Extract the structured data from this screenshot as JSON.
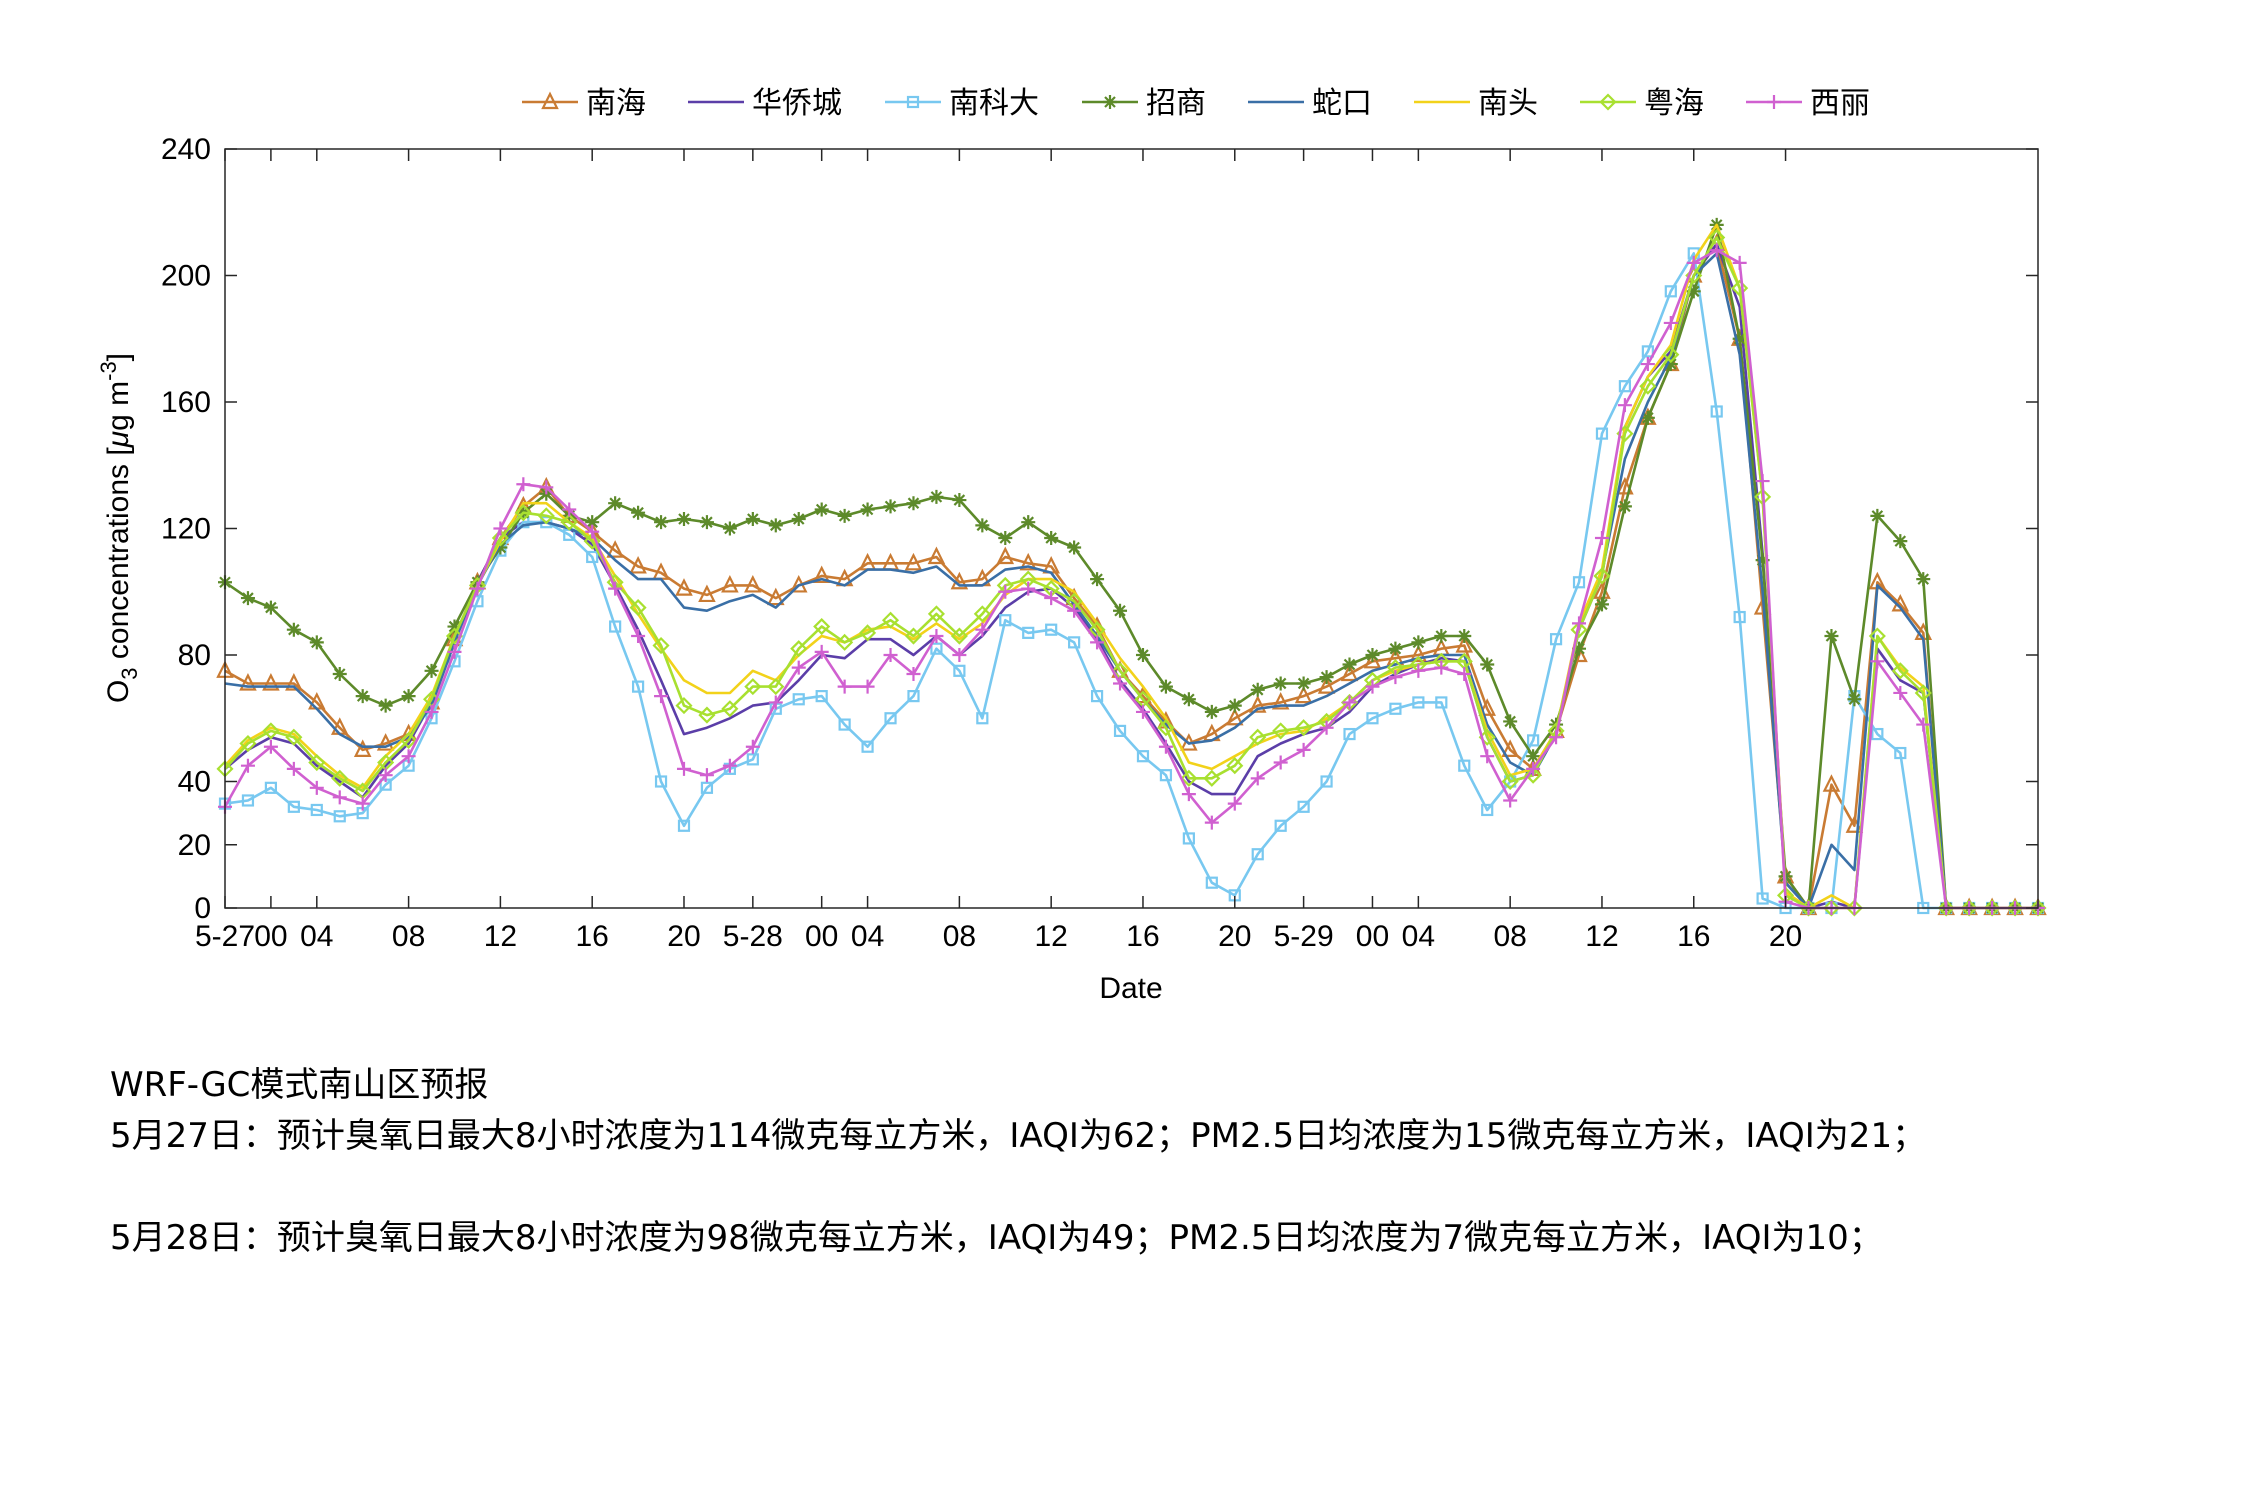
{
  "chart_data": {
    "type": "line",
    "xlabel": "Date",
    "ylabel": "O3 concentrations [μg m-3]",
    "ylabel_parts": {
      "o": "O",
      "sub": "3",
      "mid": " concentrations [",
      "mu": "μ",
      "g": "g m",
      "sup": "-3",
      "close": "]"
    },
    "ylim": [
      0,
      240
    ],
    "yticks": [
      0,
      20,
      40,
      80,
      120,
      160,
      200,
      240
    ],
    "xlim": [
      0,
      79
    ],
    "xticks": [
      {
        "x": 0,
        "label": "5-27"
      },
      {
        "x": 2,
        "label": "00"
      },
      {
        "x": 4,
        "label": "04"
      },
      {
        "x": 8,
        "label": "08"
      },
      {
        "x": 12,
        "label": "12"
      },
      {
        "x": 16,
        "label": "16"
      },
      {
        "x": 20,
        "label": "20"
      },
      {
        "x": 23,
        "label": "5-28"
      },
      {
        "x": 26,
        "label": "00"
      },
      {
        "x": 28,
        "label": "04"
      },
      {
        "x": 32,
        "label": "08"
      },
      {
        "x": 36,
        "label": "12"
      },
      {
        "x": 40,
        "label": "16"
      },
      {
        "x": 44,
        "label": "20"
      },
      {
        "x": 47,
        "label": "5-29"
      },
      {
        "x": 50,
        "label": "00"
      },
      {
        "x": 52,
        "label": "04"
      },
      {
        "x": 56,
        "label": "08"
      },
      {
        "x": 60,
        "label": "12"
      },
      {
        "x": 64,
        "label": "16"
      },
      {
        "x": 68,
        "label": "20"
      }
    ],
    "legend_position": "top-center",
    "grid": false,
    "series": [
      {
        "name": "南海",
        "color": "#c97b33",
        "marker": "triangle",
        "values": [
          75,
          71,
          71,
          71,
          65,
          57,
          50,
          52,
          55,
          65,
          85,
          103,
          117,
          127,
          133,
          124,
          119,
          113,
          108,
          106,
          101,
          99,
          102,
          102,
          98,
          102,
          105,
          104,
          109,
          109,
          109,
          111,
          103,
          104,
          111,
          109,
          108,
          98,
          89,
          75,
          67,
          59,
          52,
          55,
          60,
          64,
          65,
          67,
          70,
          74,
          78,
          79,
          80,
          82,
          83,
          63,
          50,
          44,
          56,
          80,
          100,
          133,
          155,
          172,
          200,
          210,
          180,
          95,
          10,
          0,
          39,
          26,
          103,
          96,
          87,
          0,
          0,
          0,
          0,
          0
        ]
      },
      {
        "name": "华侨城",
        "color": "#5b3ea8",
        "marker": "none",
        "values": [
          44,
          50,
          54,
          52,
          45,
          40,
          35,
          45,
          52,
          65,
          85,
          103,
          117,
          122,
          122,
          120,
          115,
          102,
          88,
          72,
          55,
          57,
          60,
          64,
          65,
          72,
          80,
          79,
          85,
          85,
          80,
          86,
          80,
          86,
          95,
          100,
          101,
          95,
          85,
          72,
          63,
          52,
          40,
          36,
          36,
          48,
          52,
          55,
          57,
          62,
          70,
          74,
          77,
          79,
          78,
          54,
          40,
          42,
          55,
          88,
          105,
          152,
          168,
          176,
          200,
          210,
          190,
          112,
          8,
          0,
          2,
          0,
          82,
          72,
          68,
          0,
          0,
          0,
          0,
          0
        ]
      },
      {
        "name": "南科大",
        "color": "#78c8f0",
        "marker": "square",
        "values": [
          33,
          34,
          38,
          32,
          31,
          29,
          30,
          39,
          45,
          60,
          78,
          97,
          113,
          122,
          122,
          118,
          111,
          89,
          70,
          40,
          26,
          38,
          44,
          47,
          63,
          66,
          67,
          58,
          51,
          60,
          67,
          82,
          75,
          60,
          91,
          87,
          88,
          84,
          67,
          56,
          48,
          42,
          22,
          8,
          4,
          17,
          26,
          32,
          40,
          55,
          60,
          63,
          65,
          65,
          45,
          31,
          40,
          53,
          85,
          103,
          150,
          165,
          176,
          195,
          207,
          157,
          92,
          3,
          0,
          0,
          0,
          67,
          55,
          49,
          0,
          0,
          0,
          0,
          0,
          0
        ]
      },
      {
        "name": "招商",
        "color": "#5d8a2a",
        "marker": "star",
        "values": [
          103,
          98,
          95,
          88,
          84,
          74,
          67,
          64,
          67,
          75,
          89,
          103,
          114,
          125,
          131,
          124,
          122,
          128,
          125,
          122,
          123,
          122,
          120,
          123,
          121,
          123,
          126,
          124,
          126,
          127,
          128,
          130,
          129,
          121,
          117,
          122,
          117,
          114,
          104,
          94,
          80,
          70,
          66,
          62,
          64,
          69,
          71,
          71,
          73,
          77,
          80,
          82,
          84,
          86,
          86,
          77,
          59,
          48,
          58,
          82,
          96,
          127,
          155,
          172,
          195,
          216,
          180,
          110,
          10,
          0,
          86,
          66,
          124,
          116,
          104,
          0,
          0,
          0,
          0,
          0
        ]
      },
      {
        "name": "蛇口",
        "color": "#3a6fa6",
        "marker": "none",
        "values": [
          71,
          70,
          70,
          70,
          63,
          55,
          51,
          51,
          54,
          64,
          84,
          102,
          115,
          121,
          122,
          120,
          117,
          110,
          104,
          104,
          95,
          94,
          97,
          99,
          95,
          102,
          104,
          102,
          107,
          107,
          106,
          108,
          102,
          102,
          107,
          108,
          106,
          96,
          86,
          75,
          66,
          58,
          52,
          53,
          57,
          63,
          64,
          64,
          67,
          71,
          75,
          77,
          79,
          80,
          80,
          58,
          46,
          42,
          55,
          88,
          106,
          142,
          160,
          174,
          200,
          207,
          175,
          100,
          8,
          0,
          20,
          12,
          102,
          95,
          85,
          0,
          0,
          0,
          0,
          0
        ]
      },
      {
        "name": "南头",
        "color": "#f2d21a",
        "marker": "none",
        "values": [
          45,
          53,
          57,
          55,
          48,
          42,
          38,
          48,
          55,
          67,
          86,
          102,
          116,
          128,
          128,
          122,
          117,
          105,
          93,
          82,
          72,
          68,
          68,
          75,
          72,
          80,
          86,
          84,
          88,
          89,
          85,
          90,
          85,
          90,
          99,
          104,
          104,
          100,
          90,
          79,
          70,
          60,
          46,
          44,
          48,
          52,
          55,
          56,
          60,
          65,
          72,
          75,
          77,
          78,
          78,
          56,
          42,
          44,
          56,
          90,
          107,
          152,
          168,
          178,
          205,
          216,
          196,
          130,
          5,
          0,
          4,
          0,
          86,
          76,
          70,
          0,
          0,
          0,
          0,
          0
        ]
      },
      {
        "name": "粤海",
        "color": "#a8e030",
        "marker": "diamond",
        "values": [
          44,
          52,
          56,
          54,
          46,
          41,
          37,
          46,
          53,
          66,
          86,
          102,
          117,
          125,
          124,
          122,
          116,
          103,
          95,
          83,
          64,
          61,
          63,
          70,
          70,
          82,
          89,
          84,
          87,
          91,
          86,
          93,
          86,
          93,
          102,
          104,
          101,
          97,
          88,
          75,
          66,
          57,
          41,
          41,
          45,
          54,
          56,
          57,
          59,
          65,
          72,
          76,
          77,
          78,
          78,
          54,
          40,
          42,
          56,
          88,
          105,
          150,
          165,
          175,
          200,
          212,
          196,
          130,
          4,
          0,
          0,
          0,
          86,
          75,
          68,
          0,
          0,
          0,
          0,
          0
        ]
      },
      {
        "name": "西丽",
        "color": "#d060d0",
        "marker": "plus",
        "values": [
          32,
          45,
          51,
          44,
          38,
          35,
          33,
          42,
          48,
          62,
          81,
          101,
          120,
          134,
          133,
          126,
          119,
          101,
          86,
          67,
          44,
          42,
          45,
          51,
          65,
          76,
          81,
          70,
          70,
          80,
          74,
          86,
          80,
          88,
          100,
          101,
          98,
          94,
          84,
          71,
          62,
          51,
          36,
          27,
          33,
          41,
          46,
          50,
          57,
          65,
          70,
          73,
          75,
          76,
          74,
          48,
          34,
          44,
          54,
          90,
          117,
          159,
          172,
          185,
          204,
          208,
          204,
          135,
          2,
          0,
          0,
          0,
          78,
          68,
          58,
          0,
          0,
          0,
          0,
          0
        ]
      }
    ]
  },
  "notes": {
    "line1": "WRF-GC模式南山区预报",
    "line2": "5月27日：预计臭氧日最大8小时浓度为114微克每立方米，IAQI为62；PM2.5日均浓度为15微克每立方米，IAQI为21；",
    "line3": "5月28日：预计臭氧日最大8小时浓度为98微克每立方米，IAQI为49；PM2.5日均浓度为7微克每立方米，IAQI为10；"
  }
}
